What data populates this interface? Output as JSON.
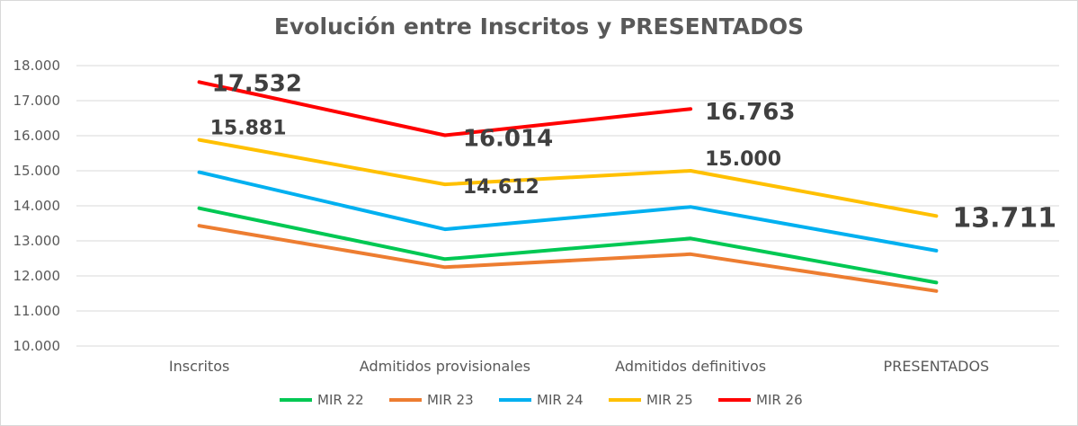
{
  "chart_data": {
    "type": "line",
    "title": "Evolución entre Inscritos y PRESENTADOS",
    "categories": [
      "Inscritos",
      "Admitidos provisionales",
      "Admitidos definitivos",
      "PRESENTADOS"
    ],
    "ylim": [
      10000,
      18000
    ],
    "yticks": [
      10000,
      11000,
      12000,
      13000,
      14000,
      15000,
      16000,
      17000,
      18000
    ],
    "ytick_labels": [
      "10.000",
      "11.000",
      "12.000",
      "13.000",
      "14.000",
      "15.000",
      "16.000",
      "17.000",
      "18.000"
    ],
    "grid": true,
    "legend": "bottom",
    "series": [
      {
        "name": "MIR 22",
        "color": "#00c853",
        "values": [
          13930,
          12480,
          13070,
          11810
        ],
        "labels": []
      },
      {
        "name": "MIR 23",
        "color": "#ed7d31",
        "values": [
          13430,
          12250,
          12620,
          11570
        ],
        "labels": []
      },
      {
        "name": "MIR 24",
        "color": "#00b0f0",
        "values": [
          14960,
          13330,
          13970,
          12720
        ],
        "labels": []
      },
      {
        "name": "MIR 25",
        "color": "#ffc000",
        "values": [
          15881,
          14612,
          15000,
          13711
        ],
        "labels": [
          "15.881",
          "14.612",
          "15.000",
          "13.711"
        ]
      },
      {
        "name": "MIR 26",
        "color": "#ff0000",
        "values": [
          17532,
          16014,
          16763,
          null
        ],
        "labels": [
          "17.532",
          "16.014",
          "16.763",
          ""
        ]
      }
    ]
  }
}
